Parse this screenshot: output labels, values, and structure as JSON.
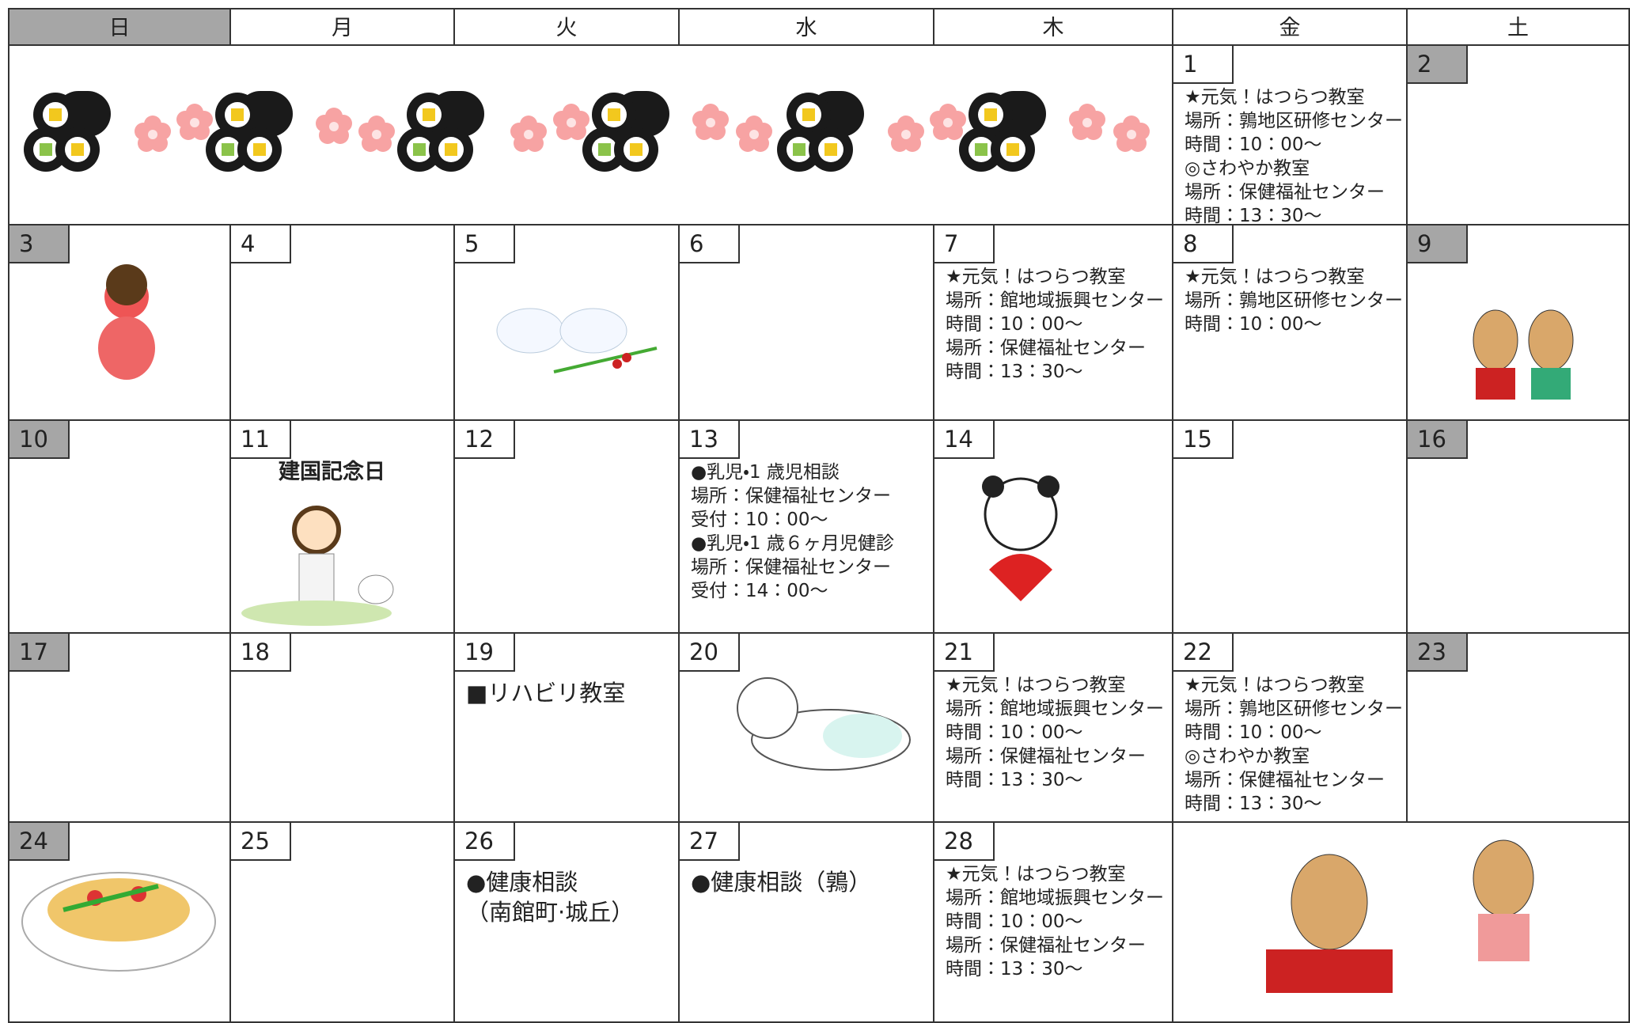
{
  "header": {
    "days": [
      "日",
      "月",
      "火",
      "水",
      "木",
      "金",
      "土"
    ]
  },
  "weeks": [
    [
      null,
      null,
      null,
      null,
      null,
      {
        "day": "1",
        "lines": [
          "★元気！はつらつ教室",
          "場所：鶉地区研修センター",
          "時間：10：00～",
          "◎さわやか教室",
          "場所：保健福祉センター",
          "時間：13：30～"
        ]
      },
      {
        "day": "2",
        "lines": []
      }
    ],
    [
      {
        "day": "3",
        "lines": []
      },
      {
        "day": "4",
        "lines": []
      },
      {
        "day": "5",
        "lines": []
      },
      {
        "day": "6",
        "lines": []
      },
      {
        "day": "7",
        "lines": [
          "★元気！はつらつ教室",
          "場所：館地域振興センター",
          "時間：10：00～",
          "場所：保健福祉センター",
          "時間：13：30～"
        ]
      },
      {
        "day": "8",
        "lines": [
          "★元気！はつらつ教室",
          "場所：鶉地区研修センター",
          "時間：10：00～"
        ]
      },
      {
        "day": "9",
        "lines": []
      }
    ],
    [
      {
        "day": "10",
        "lines": []
      },
      {
        "day": "11",
        "lines": [
          "建国記念日"
        ]
      },
      {
        "day": "12",
        "lines": []
      },
      {
        "day": "13",
        "lines": [
          "●乳児・1 歳児相談",
          "場所：保健福祉センター",
          "受付：10：00～",
          "●乳児・1 歳６ヶ月児健診",
          "場所：保健福祉センター",
          "受付：14：00～"
        ]
      },
      {
        "day": "14",
        "lines": []
      },
      {
        "day": "15",
        "lines": []
      },
      {
        "day": "16",
        "lines": []
      }
    ],
    [
      {
        "day": "17",
        "lines": []
      },
      {
        "day": "18",
        "lines": []
      },
      {
        "day": "19",
        "lines": [
          "■リハビリ教室"
        ]
      },
      {
        "day": "20",
        "lines": []
      },
      {
        "day": "21",
        "lines": [
          "★元気！はつらつ教室",
          "場所：館地域振興センター",
          "時間：10：00～",
          "場所：保健福祉センター",
          "時間：13：30～"
        ]
      },
      {
        "day": "22",
        "lines": [
          "★元気！はつらつ教室",
          "場所：鶉地区研修センター",
          "時間：10：00～",
          "◎さわやか教室",
          "場所：保健福祉センター",
          "時間：13：30～"
        ]
      },
      {
        "day": "23",
        "lines": []
      }
    ],
    [
      {
        "day": "24",
        "lines": []
      },
      {
        "day": "25",
        "lines": []
      },
      {
        "day": "26",
        "lines": [
          "●健康相談",
          "（南館町·城丘）"
        ]
      },
      {
        "day": "27",
        "lines": [
          "●健康相談（鶉）"
        ]
      },
      {
        "day": "28",
        "lines": [
          "★元気！はつらつ教室",
          "場所：館地域振興センター",
          "時間：10：00～",
          "場所：保健福祉センター",
          "時間：13：30～"
        ]
      },
      null,
      null
    ]
  ]
}
